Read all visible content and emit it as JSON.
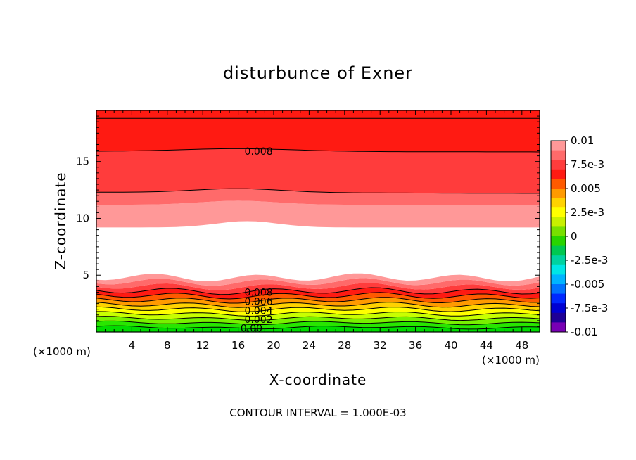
{
  "chart_data": {
    "type": "contour",
    "title": "disturbunce of Exner",
    "xlabel": "X-coordinate",
    "ylabel": "Z-coordinate",
    "x_unit": "(×1000 m)",
    "footer": "CONTOUR INTERVAL = 1.000E-03",
    "xlim": [
      0,
      50
    ],
    "ylim": [
      0,
      19.5
    ],
    "x_ticks": [
      "4",
      "8",
      "12",
      "16",
      "20",
      "24",
      "28",
      "32",
      "36",
      "40",
      "44",
      "48"
    ],
    "y_ticks": [
      "5",
      "10",
      "15"
    ],
    "colorbar": {
      "range": [
        -0.01,
        0.01
      ],
      "tick_labels": [
        "0.01",
        "7.5e-3",
        "0.005",
        "2.5e-3",
        "0",
        "-2.5e-3",
        "-0.005",
        "-7.5e-3",
        "-0.01"
      ],
      "colors_top_to_bottom": [
        "#ff9898",
        "#ff6a6a",
        "#ff3c3c",
        "#ff1a12",
        "#ff5a00",
        "#ff9a00",
        "#ffd200",
        "#ffff00",
        "#c8f000",
        "#78e000",
        "#28d400",
        "#00c850",
        "#00d2a0",
        "#00e6e6",
        "#00b4ff",
        "#0072ff",
        "#0028ff",
        "#0000d2",
        "#1e0096",
        "#7800b4"
      ]
    },
    "contour_labels": [
      "0.008",
      "0.008",
      "0.006",
      "0.004",
      "0.002",
      "0.00"
    ],
    "upper_band_colors": [
      "#ff9898",
      "#ff6a6a",
      "#ff3c3c",
      "#ff1a12"
    ],
    "lower_band_colors": [
      "#00dc00",
      "#28e600",
      "#78f000",
      "#c8ff00",
      "#ffff00",
      "#ffd200",
      "#ff9a00",
      "#ff5a00",
      "#ff1a12",
      "#ff3c3c",
      "#ff6a6a",
      "#ff9898"
    ]
  }
}
